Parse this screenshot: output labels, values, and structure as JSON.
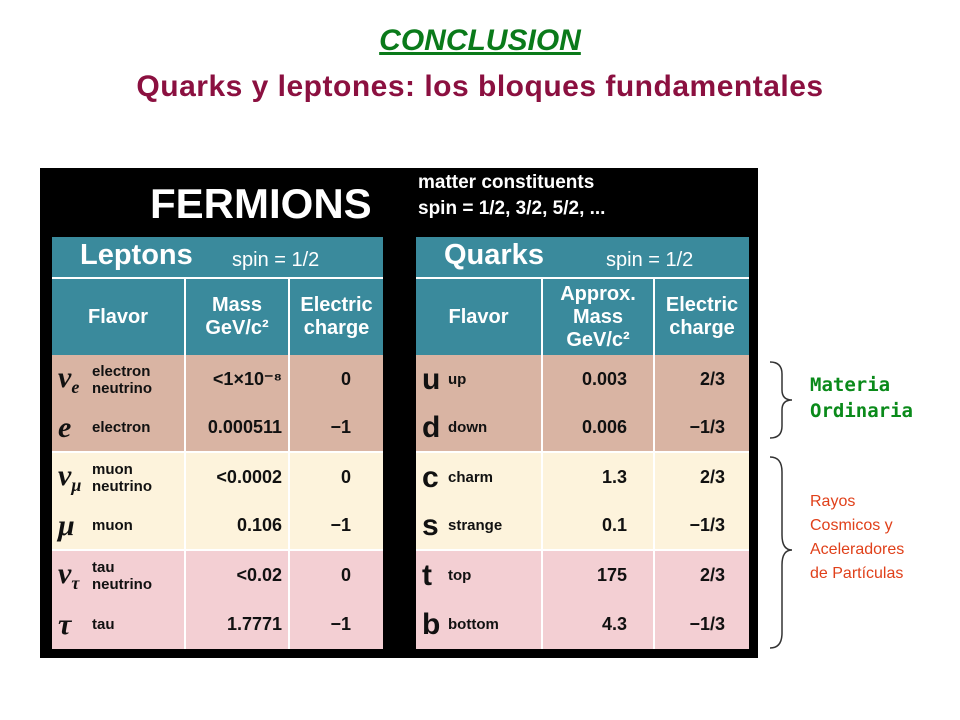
{
  "header": {
    "title": "CONCLUSION",
    "subtitle": "Quarks y leptones: los bloques fundamentales"
  },
  "fermions": {
    "title": "FERMIONS",
    "notes": [
      "matter constituents",
      "spin = 1/2, 3/2, 5/2, ..."
    ]
  },
  "tables": [
    {
      "title": "Leptons",
      "spin": "spin = 1/2",
      "columns": [
        [
          "Flavor"
        ],
        [
          "Mass",
          "GeV/c²"
        ],
        [
          "Electric",
          "charge"
        ]
      ],
      "rows": [
        {
          "symbol": "ν",
          "sub": "e",
          "name": "electron neutrino",
          "mass": "<1×10⁻⁸",
          "charge": "0"
        },
        {
          "symbol": "e",
          "name": "electron",
          "mass": "0.000511",
          "charge": "−1"
        },
        {
          "symbol": "ν",
          "sub": "μ",
          "name": "muon neutrino",
          "mass": "<0.0002",
          "charge": "0"
        },
        {
          "symbol": "μ",
          "name": "muon",
          "mass": "0.106",
          "charge": "−1"
        },
        {
          "symbol": "ν",
          "sub": "τ",
          "name": "tau neutrino",
          "mass": "<0.02",
          "charge": "0"
        },
        {
          "symbol": "τ",
          "name": "tau",
          "mass": "1.7771",
          "charge": "−1"
        }
      ]
    },
    {
      "title": "Quarks",
      "spin": "spin = 1/2",
      "columns": [
        [
          "Flavor"
        ],
        [
          "Approx.",
          "Mass",
          "GeV/c²"
        ],
        [
          "Electric",
          "charge"
        ]
      ],
      "rows": [
        {
          "symbol": "u",
          "name": "up",
          "mass": "0.003",
          "charge": "2/3"
        },
        {
          "symbol": "d",
          "name": "down",
          "mass": "0.006",
          "charge": "−1/3"
        },
        {
          "symbol": "c",
          "name": "charm",
          "mass": "1.3",
          "charge": "2/3"
        },
        {
          "symbol": "s",
          "name": "strange",
          "mass": "0.1",
          "charge": "−1/3"
        },
        {
          "symbol": "t",
          "name": "top",
          "mass": "175",
          "charge": "2/3"
        },
        {
          "symbol": "b",
          "name": "bottom",
          "mass": "4.3",
          "charge": "−1/3"
        }
      ]
    }
  ],
  "side_labels": [
    {
      "lines": [
        "Materia",
        "Ordinaria"
      ]
    },
    {
      "lines": [
        "Rayos",
        "Cosmicos y",
        "Aceleradores",
        "de Partículas"
      ]
    }
  ]
}
